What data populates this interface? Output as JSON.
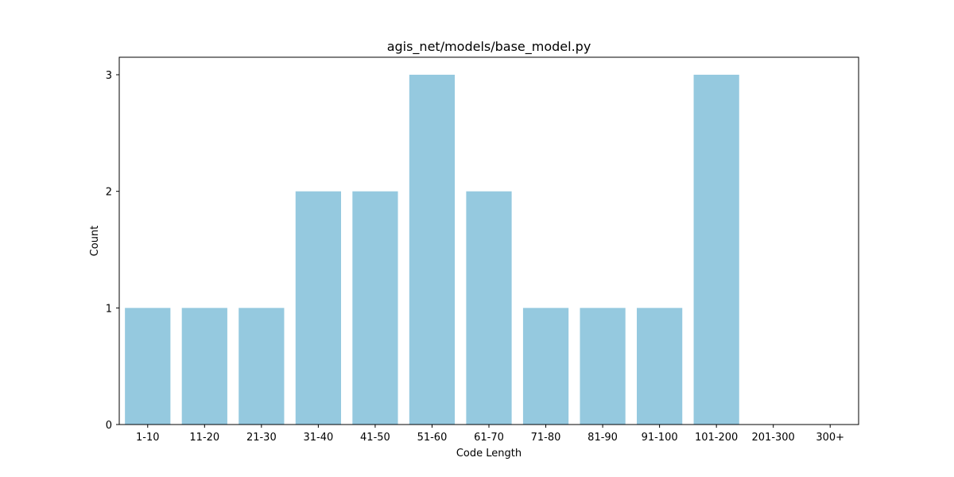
{
  "chart_data": {
    "type": "bar",
    "title": "agis_net/models/base_model.py",
    "xlabel": "Code Length",
    "ylabel": "Count",
    "categories": [
      "1-10",
      "11-20",
      "21-30",
      "31-40",
      "41-50",
      "51-60",
      "61-70",
      "71-80",
      "81-90",
      "91-100",
      "101-200",
      "201-300",
      "300+"
    ],
    "values": [
      1,
      1,
      1,
      2,
      2,
      3,
      2,
      1,
      1,
      1,
      3,
      0,
      0
    ],
    "ylim": [
      0,
      3.15
    ],
    "yticks": [
      0,
      1,
      2,
      3
    ],
    "bar_color": "#95c9df",
    "grid": false,
    "legend": "none"
  }
}
